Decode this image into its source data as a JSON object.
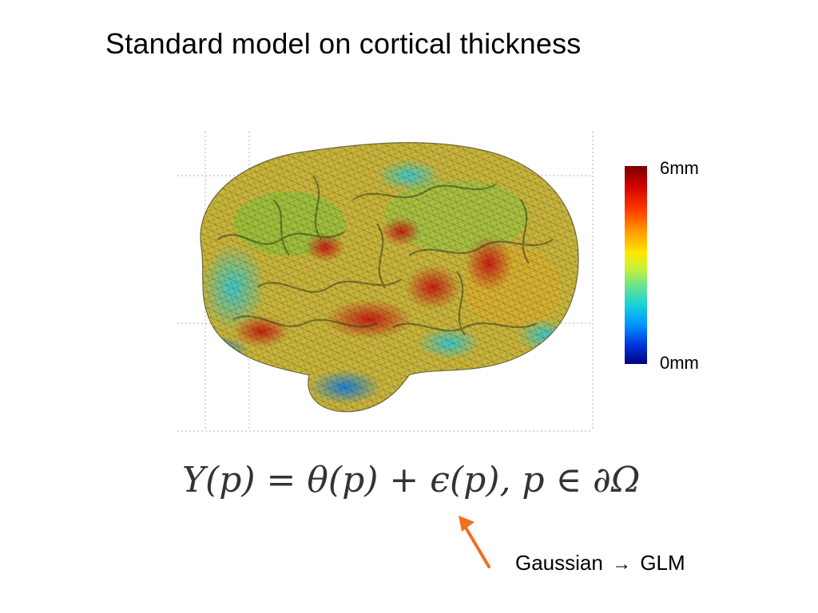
{
  "slide": {
    "title": "Standard model on cortical thickness"
  },
  "colorbar": {
    "max_label": "6mm",
    "min_label": "0mm",
    "colormap": "jet",
    "range_mm": [
      0,
      6
    ]
  },
  "figure": {
    "subject": "cortical surface mesh colored by thickness"
  },
  "equation": {
    "lhs": "Y(p)",
    "equals": "=",
    "term1": "θ(p)",
    "plus": "+",
    "term2": "ϵ(p)",
    "domain": ", p ∈ ∂Ω"
  },
  "annotation": {
    "from": "Gaussian",
    "arrow_glyph": "→",
    "to": "GLM",
    "arrow_color": "#f07020"
  }
}
